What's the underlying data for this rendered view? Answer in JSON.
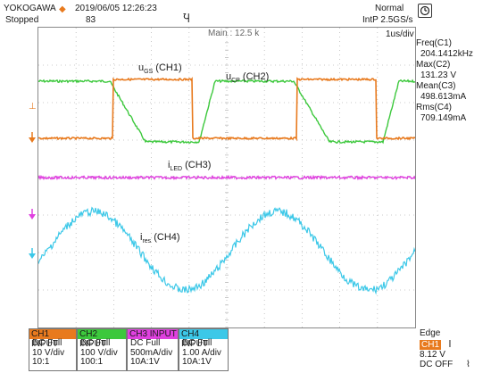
{
  "header": {
    "brand": "YOKOGAWA",
    "status": "Stopped",
    "datetime": "2019/06/05 12:26:23",
    "acq_count": "83",
    "trigger_mode": "Normal",
    "sample_rate": "IntP  2.5GS/s"
  },
  "timebase": {
    "main_label": "Main : 12.5 k",
    "div_label": "1us/div"
  },
  "measurements": [
    {
      "name": "Freq(C1)",
      "value": "204.1412kHz"
    },
    {
      "name": "Max(C2)",
      "value": "131.23 V"
    },
    {
      "name": "Mean(C3)",
      "value": "498.613mA"
    },
    {
      "name": "Rms(C4)",
      "value": "709.149mA"
    }
  ],
  "annotations": {
    "ugs": "u",
    "ugs_sub": "GS",
    "ugs_ch": " (CH1)",
    "ucp": "u",
    "ucp_sub": "CP",
    "ucp_ch": " (CH2)",
    "iled": "i",
    "iled_sub": "LED",
    "iled_ch": " (CH3)",
    "ires": "i",
    "ires_sub": "res",
    "ires_ch": " (CH4)"
  },
  "channels": [
    {
      "head": "CH1 INPUT",
      "coupling": "DC Full",
      "scale": "10 V/div",
      "probe": "10:1",
      "color": "#e87a1e"
    },
    {
      "head": "CH2 INPUT",
      "coupling": "DC Full",
      "scale": "100 V/div",
      "probe": "100:1",
      "color": "#3cc83c"
    },
    {
      "head": "CH3 INPUT",
      "coupling": "DC Full",
      "scale": "500mA/div",
      "probe": "10A:1V",
      "color": "#e040e0"
    },
    {
      "head": "CH4 INPUT",
      "coupling": "DC Full",
      "scale": "1.00 A/div",
      "probe": "10A:1V",
      "color": "#3cc8e8"
    }
  ],
  "trigger": {
    "type": "Edge",
    "source": "CH1",
    "level": "8.12 V",
    "coupling": "DC OFF"
  },
  "colors": {
    "ch1": "#e87a1e",
    "ch2": "#3cc83c",
    "ch3": "#e040e0",
    "ch4": "#3cc8e8"
  }
}
